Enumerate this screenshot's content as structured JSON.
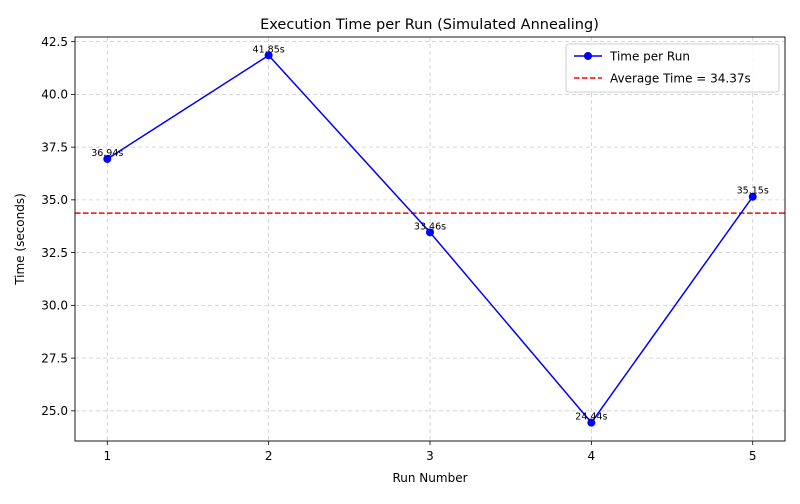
{
  "chart_data": {
    "type": "line",
    "title": "Execution Time per Run (Simulated Annealing)",
    "xlabel": "Run Number",
    "ylabel": "Time (seconds)",
    "x": [
      1,
      2,
      3,
      4,
      5
    ],
    "xlim": [
      0.8,
      5.2
    ],
    "ylim": [
      23.57,
      42.72
    ],
    "yticks": [
      25.0,
      27.5,
      30.0,
      32.5,
      35.0,
      37.5,
      40.0,
      42.5
    ],
    "ytick_labels": [
      "25.0",
      "27.5",
      "30.0",
      "32.5",
      "35.0",
      "37.5",
      "40.0",
      "42.5"
    ],
    "xtick_labels": [
      "1",
      "2",
      "3",
      "4",
      "5"
    ],
    "grid": true,
    "legend_position": "top-right",
    "series": [
      {
        "name": "Time per Run",
        "values": [
          36.94,
          41.85,
          33.46,
          24.44,
          35.15
        ],
        "data_labels": [
          "36.94s",
          "41.85s",
          "33.46s",
          "24.44s",
          "35.15s"
        ],
        "color": "#0000ff",
        "marker": "circle"
      }
    ],
    "reference_lines": [
      {
        "name": "Average Time = 34.37s",
        "value": 34.37,
        "color": "#ff0000",
        "style": "dashed"
      }
    ]
  }
}
